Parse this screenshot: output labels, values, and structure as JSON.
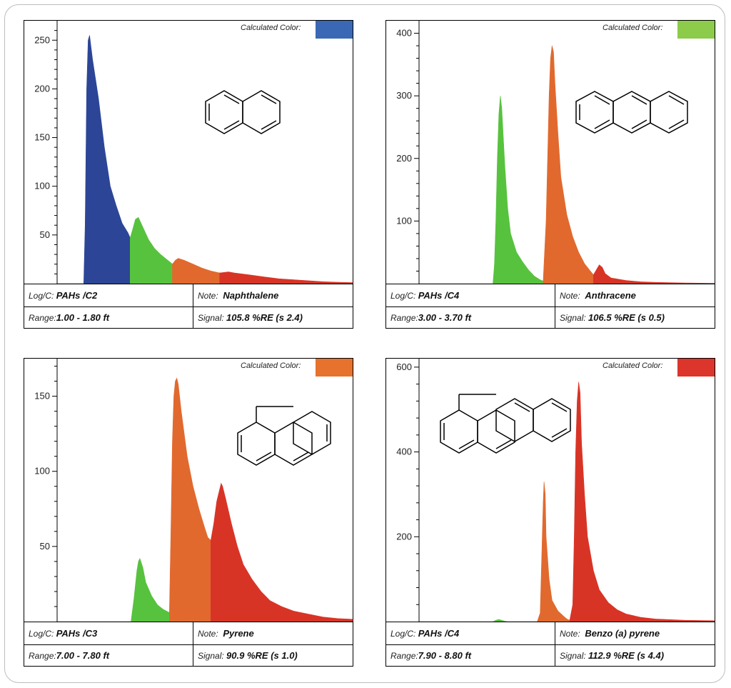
{
  "calc_label": "Calculated Color:",
  "labels": {
    "log": "Log/C:",
    "note": "Note:",
    "range": "Range:",
    "signal": "Signal:"
  },
  "panels": [
    {
      "log": "PAHs /C2",
      "note": "Naphthalene",
      "range": "1.00 - 1.80 ft",
      "signal": "105.8 %RE (s 2.4)",
      "calc_color": "#3a68b4",
      "structure_icon": "naphthalene-structure-icon"
    },
    {
      "log": "PAHs /C4",
      "note": "Anthracene",
      "range": "3.00 - 3.70 ft",
      "signal": "106.5 %RE (s 0.5)",
      "calc_color": "#8ccc4a",
      "structure_icon": "anthracene-structure-icon"
    },
    {
      "log": "PAHs /C3",
      "note": "Pyrene",
      "range": "7.00 - 7.80 ft",
      "signal": "90.9 %RE (s 1.0)",
      "calc_color": "#e6722d",
      "structure_icon": "pyrene-structure-icon"
    },
    {
      "log": "PAHs /C4",
      "note": "Benzo (a) pyrene",
      "range": "7.90 - 8.80 ft",
      "signal": "112.9 %RE (s 4.4)",
      "calc_color": "#dc352b",
      "structure_icon": "benzo-a-pyrene-structure-icon"
    }
  ],
  "chart_data": [
    {
      "type": "area",
      "ylim": [
        0,
        270
      ],
      "yticks": [
        50,
        100,
        150,
        200,
        250
      ],
      "segments": [
        {
          "color": "#2c4596",
          "points": [
            [
              0.0,
              0
            ],
            [
              0.09,
              0
            ],
            [
              0.095,
              60
            ],
            [
              0.1,
              200
            ],
            [
              0.105,
              250
            ],
            [
              0.11,
              255
            ],
            [
              0.12,
              230
            ],
            [
              0.14,
              190
            ],
            [
              0.16,
              140
            ],
            [
              0.18,
              100
            ],
            [
              0.2,
              80
            ],
            [
              0.22,
              62
            ],
            [
              0.24,
              52
            ],
            [
              0.247,
              47
            ]
          ]
        },
        {
          "color": "#57c23e",
          "points": [
            [
              0.247,
              47
            ],
            [
              0.255,
              55
            ],
            [
              0.265,
              66
            ],
            [
              0.275,
              68
            ],
            [
              0.29,
              58
            ],
            [
              0.31,
              45
            ],
            [
              0.33,
              36
            ],
            [
              0.35,
              30
            ],
            [
              0.37,
              25
            ],
            [
              0.39,
              20
            ]
          ]
        },
        {
          "color": "#e1692e",
          "points": [
            [
              0.39,
              20
            ],
            [
              0.4,
              24
            ],
            [
              0.41,
              26
            ],
            [
              0.43,
              24
            ],
            [
              0.46,
              20
            ],
            [
              0.49,
              16
            ],
            [
              0.52,
              13
            ],
            [
              0.55,
              11
            ]
          ]
        },
        {
          "color": "#d83426",
          "points": [
            [
              0.55,
              11
            ],
            [
              0.58,
              12
            ],
            [
              0.6,
              11
            ],
            [
              0.65,
              9
            ],
            [
              0.7,
              7
            ],
            [
              0.75,
              5
            ],
            [
              0.8,
              4
            ],
            [
              0.85,
              3
            ],
            [
              0.9,
              2
            ],
            [
              0.95,
              1.5
            ],
            [
              1.0,
              1
            ]
          ]
        }
      ]
    },
    {
      "type": "area",
      "ylim": [
        0,
        420
      ],
      "yticks": [
        100,
        200,
        300,
        400
      ],
      "segments": [
        {
          "color": "#57c23e",
          "points": [
            [
              0.0,
              0
            ],
            [
              0.25,
              0
            ],
            [
              0.255,
              30
            ],
            [
              0.26,
              100
            ],
            [
              0.265,
              200
            ],
            [
              0.27,
              270
            ],
            [
              0.275,
              300
            ],
            [
              0.28,
              280
            ],
            [
              0.29,
              190
            ],
            [
              0.3,
              120
            ],
            [
              0.31,
              80
            ],
            [
              0.33,
              50
            ],
            [
              0.35,
              35
            ],
            [
              0.37,
              22
            ],
            [
              0.39,
              12
            ],
            [
              0.41,
              6
            ],
            [
              0.42,
              4
            ]
          ]
        },
        {
          "color": "#e1692e",
          "points": [
            [
              0.42,
              4
            ],
            [
              0.43,
              100
            ],
            [
              0.435,
              200
            ],
            [
              0.44,
              300
            ],
            [
              0.445,
              360
            ],
            [
              0.45,
              380
            ],
            [
              0.455,
              370
            ],
            [
              0.46,
              320
            ],
            [
              0.47,
              240
            ],
            [
              0.48,
              170
            ],
            [
              0.5,
              110
            ],
            [
              0.52,
              75
            ],
            [
              0.54,
              50
            ],
            [
              0.56,
              32
            ],
            [
              0.58,
              20
            ],
            [
              0.59,
              14
            ]
          ]
        },
        {
          "color": "#d83426",
          "points": [
            [
              0.59,
              14
            ],
            [
              0.6,
              22
            ],
            [
              0.61,
              30
            ],
            [
              0.62,
              26
            ],
            [
              0.63,
              16
            ],
            [
              0.65,
              9
            ],
            [
              0.7,
              5
            ],
            [
              0.75,
              3
            ],
            [
              0.8,
              2
            ],
            [
              0.9,
              1
            ],
            [
              1.0,
              0.5
            ]
          ]
        }
      ]
    },
    {
      "type": "area",
      "ylim": [
        0,
        175
      ],
      "yticks": [
        50,
        100,
        150
      ],
      "segments": [
        {
          "color": "#57c23e",
          "points": [
            [
              0.0,
              0
            ],
            [
              0.25,
              0
            ],
            [
              0.26,
              15
            ],
            [
              0.27,
              34
            ],
            [
              0.275,
              40
            ],
            [
              0.28,
              42
            ],
            [
              0.29,
              36
            ],
            [
              0.3,
              26
            ],
            [
              0.32,
              17
            ],
            [
              0.34,
              11
            ],
            [
              0.36,
              8
            ],
            [
              0.38,
              6
            ]
          ]
        },
        {
          "color": "#e1692e",
          "points": [
            [
              0.38,
              6
            ],
            [
              0.385,
              60
            ],
            [
              0.39,
              120
            ],
            [
              0.395,
              150
            ],
            [
              0.4,
              160
            ],
            [
              0.405,
              162
            ],
            [
              0.41,
              158
            ],
            [
              0.42,
              140
            ],
            [
              0.44,
              110
            ],
            [
              0.46,
              90
            ],
            [
              0.48,
              75
            ],
            [
              0.5,
              62
            ],
            [
              0.51,
              56
            ],
            [
              0.52,
              54
            ]
          ]
        },
        {
          "color": "#d83426",
          "points": [
            [
              0.52,
              54
            ],
            [
              0.53,
              65
            ],
            [
              0.54,
              80
            ],
            [
              0.55,
              88
            ],
            [
              0.555,
              92
            ],
            [
              0.56,
              90
            ],
            [
              0.57,
              82
            ],
            [
              0.59,
              65
            ],
            [
              0.61,
              50
            ],
            [
              0.63,
              38
            ],
            [
              0.66,
              28
            ],
            [
              0.69,
              20
            ],
            [
              0.72,
              14
            ],
            [
              0.76,
              10
            ],
            [
              0.8,
              7
            ],
            [
              0.85,
              5
            ],
            [
              0.9,
              3
            ],
            [
              0.95,
              2
            ],
            [
              1.0,
              1.5
            ]
          ]
        }
      ]
    },
    {
      "type": "area",
      "ylim": [
        0,
        620
      ],
      "yticks": [
        200,
        400,
        600
      ],
      "segments": [
        {
          "color": "#57c23e",
          "points": [
            [
              0.0,
              0
            ],
            [
              0.25,
              0
            ],
            [
              0.26,
              3
            ],
            [
              0.27,
              5
            ],
            [
              0.28,
              3
            ],
            [
              0.29,
              1
            ],
            [
              0.3,
              0
            ]
          ]
        },
        {
          "color": "#e1692e",
          "points": [
            [
              0.3,
              0
            ],
            [
              0.4,
              0
            ],
            [
              0.41,
              20
            ],
            [
              0.415,
              150
            ],
            [
              0.42,
              280
            ],
            [
              0.423,
              330
            ],
            [
              0.427,
              300
            ],
            [
              0.43,
              200
            ],
            [
              0.44,
              100
            ],
            [
              0.45,
              50
            ],
            [
              0.47,
              25
            ],
            [
              0.49,
              12
            ],
            [
              0.5,
              6
            ],
            [
              0.51,
              3
            ]
          ]
        },
        {
          "color": "#d83426",
          "points": [
            [
              0.51,
              3
            ],
            [
              0.52,
              40
            ],
            [
              0.525,
              200
            ],
            [
              0.53,
              400
            ],
            [
              0.535,
              520
            ],
            [
              0.54,
              565
            ],
            [
              0.545,
              540
            ],
            [
              0.55,
              420
            ],
            [
              0.56,
              300
            ],
            [
              0.57,
              200
            ],
            [
              0.59,
              120
            ],
            [
              0.61,
              75
            ],
            [
              0.64,
              45
            ],
            [
              0.67,
              28
            ],
            [
              0.7,
              18
            ],
            [
              0.75,
              10
            ],
            [
              0.8,
              6
            ],
            [
              0.9,
              3
            ],
            [
              1.0,
              2
            ]
          ]
        }
      ]
    }
  ]
}
